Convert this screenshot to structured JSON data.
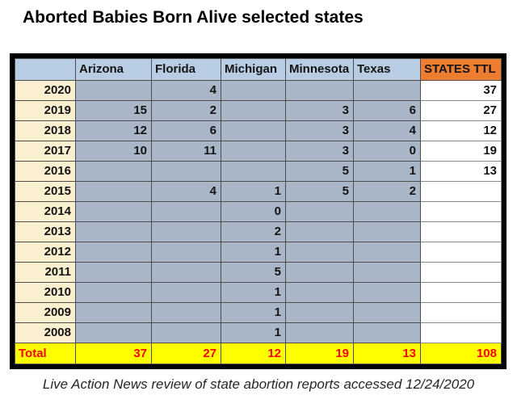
{
  "title": "Aborted Babies Born Alive selected states",
  "caption": "Live Action News review of state abortion reports accessed 12/24/2020",
  "colors": {
    "header_fill": "#B8CCE4",
    "states_ttl_header_fill": "#ED7D31",
    "year_column_fill": "#FAF0D0",
    "data_cell_fill": "#A8B6C8",
    "total_row_fill": "#FFFF00",
    "total_row_text": "#FF0000"
  },
  "chart_data": {
    "type": "table",
    "title": "Aborted Babies Born Alive selected states",
    "columns": [
      "Arizona",
      "Florida",
      "Michigan",
      "Minnesota",
      "Texas",
      "STATES TTL"
    ],
    "rows": [
      {
        "year": "2020",
        "values": [
          null,
          4,
          null,
          null,
          null,
          37
        ]
      },
      {
        "year": "2019",
        "values": [
          15,
          2,
          null,
          3,
          6,
          27
        ]
      },
      {
        "year": "2018",
        "values": [
          12,
          6,
          null,
          3,
          4,
          12
        ]
      },
      {
        "year": "2017",
        "values": [
          10,
          11,
          null,
          3,
          0,
          19
        ]
      },
      {
        "year": "2016",
        "values": [
          null,
          null,
          null,
          5,
          1,
          13
        ]
      },
      {
        "year": "2015",
        "values": [
          null,
          4,
          1,
          5,
          2,
          null
        ]
      },
      {
        "year": "2014",
        "values": [
          null,
          null,
          0,
          null,
          null,
          null
        ]
      },
      {
        "year": "2013",
        "values": [
          null,
          null,
          2,
          null,
          null,
          null
        ]
      },
      {
        "year": "2012",
        "values": [
          null,
          null,
          1,
          null,
          null,
          null
        ]
      },
      {
        "year": "2011",
        "values": [
          null,
          null,
          5,
          null,
          null,
          null
        ]
      },
      {
        "year": "2010",
        "values": [
          null,
          null,
          1,
          null,
          null,
          null
        ]
      },
      {
        "year": "2009",
        "values": [
          null,
          null,
          1,
          null,
          null,
          null
        ]
      },
      {
        "year": "2008",
        "values": [
          null,
          null,
          1,
          null,
          null,
          null
        ]
      }
    ],
    "totals": {
      "label": "Total",
      "values": [
        37,
        27,
        12,
        19,
        13,
        108
      ]
    },
    "caption": "Live Action News review of state abortion reports accessed 12/24/2020"
  }
}
